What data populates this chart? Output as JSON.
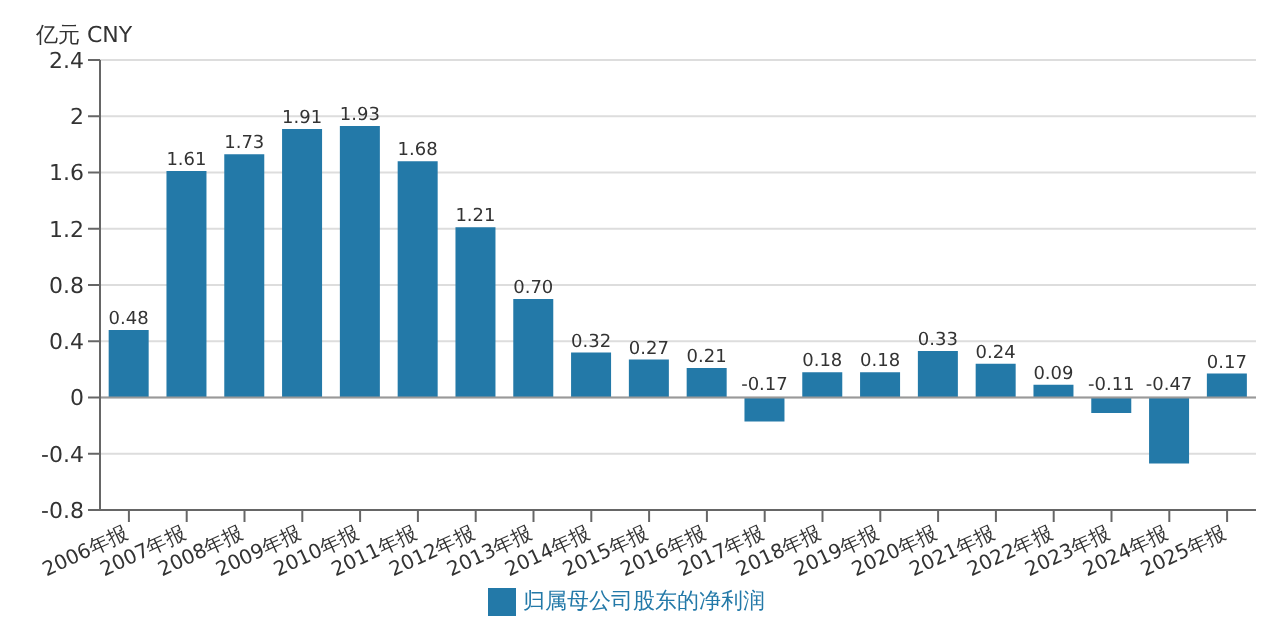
{
  "chart_data": {
    "type": "bar",
    "ylabel": "亿元  CNY",
    "categories": [
      "2006年报",
      "2007年报",
      "2008年报",
      "2009年报",
      "2010年报",
      "2011年报",
      "2012年报",
      "2013年报",
      "2014年报",
      "2015年报",
      "2016年报",
      "2017年报",
      "2018年报",
      "2019年报",
      "2020年报",
      "2021年报",
      "2022年报",
      "2023年报",
      "2024年报",
      "2025年报"
    ],
    "series": [
      {
        "name": "归属母公司股东的净利润",
        "color": "#2379a8",
        "values": [
          0.48,
          1.61,
          1.73,
          1.91,
          1.93,
          1.68,
          1.21,
          0.7,
          0.32,
          0.27,
          0.21,
          -0.17,
          0.18,
          0.18,
          0.33,
          0.24,
          0.09,
          -0.11,
          -0.47,
          0.17
        ],
        "value_labels": [
          "0.48",
          "1.61",
          "1.73",
          "1.91",
          "1.93",
          "1.68",
          "1.21",
          "0.70",
          "0.32",
          "0.27",
          "0.21",
          "-0.17",
          "0.18",
          "0.18",
          "0.33",
          "0.24",
          "0.09",
          "-0.11",
          "-0.47",
          "0.17"
        ]
      }
    ],
    "ylim": [
      -0.8,
      2.4
    ],
    "yticks": [
      -0.8,
      -0.4,
      0,
      0.4,
      0.8,
      1.2,
      1.6,
      2,
      2.4
    ],
    "grid": "y",
    "legend": "bottom"
  }
}
